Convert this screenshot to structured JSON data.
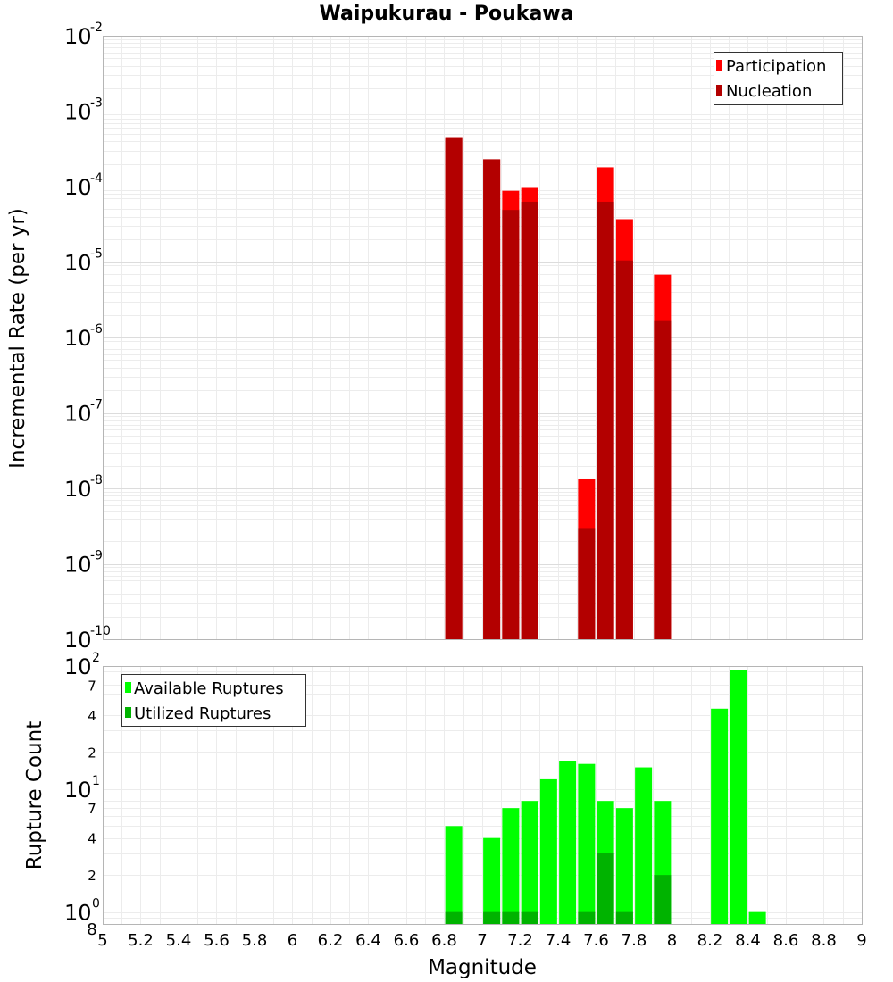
{
  "colors": {
    "participation": "#ff0000",
    "nucleation": "#b30000",
    "available": "#00ff00",
    "utilized": "#00b300"
  },
  "chart_data": [
    {
      "type": "bar",
      "title": "Waipukurau - Poukawa",
      "xlabel": "",
      "ylabel": "Incremental Rate (per yr)",
      "xlim": [
        5,
        9
      ],
      "ylim": [
        1e-10,
        0.01
      ],
      "yscale": "log",
      "grid": true,
      "legend_placement": "top-right",
      "y_tick_labels": [
        {
          "base": "10",
          "exp": "-2"
        },
        {
          "base": "10",
          "exp": "-3"
        },
        {
          "base": "10",
          "exp": "-4"
        },
        {
          "base": "10",
          "exp": "-5"
        },
        {
          "base": "10",
          "exp": "-6"
        },
        {
          "base": "10",
          "exp": "-7"
        },
        {
          "base": "10",
          "exp": "-8"
        },
        {
          "base": "10",
          "exp": "-9"
        },
        {
          "base": "10",
          "exp": "-10"
        }
      ],
      "x": [
        6.85,
        7.05,
        7.15,
        7.25,
        7.55,
        7.65,
        7.75,
        7.95
      ],
      "series": [
        {
          "name": "Participation",
          "values": [
            0.00044,
            0.00023,
            8.8e-05,
            9.6e-05,
            1.35e-08,
            0.00018,
            3.7e-05,
            6.8e-06
          ]
        },
        {
          "name": "Nucleation",
          "values": [
            0.00044,
            0.00023,
            4.9e-05,
            6.3e-05,
            2.9e-09,
            6.3e-05,
            1.05e-05,
            1.65e-06
          ]
        }
      ]
    },
    {
      "type": "bar",
      "title": "",
      "xlabel": "Magnitude",
      "ylabel": "Rupture Count",
      "xlim": [
        5,
        9
      ],
      "ylim": [
        0.8,
        100
      ],
      "yscale": "log",
      "grid": true,
      "legend_placement": "top-left",
      "x_tick_labels": [
        "5",
        "5.2",
        "5.4",
        "5.6",
        "5.8",
        "6",
        "6.2",
        "6.4",
        "6.6",
        "6.8",
        "7",
        "7.2",
        "7.4",
        "7.6",
        "7.8",
        "8",
        "8.2",
        "8.4",
        "8.6",
        "8.8",
        "9"
      ],
      "y_major_labels": [
        {
          "base": "10",
          "exp": "2"
        },
        {
          "base": "10",
          "exp": "1"
        },
        {
          "base": "10",
          "exp": "0"
        }
      ],
      "y_minor_labels": [
        "7",
        "4",
        "2",
        "7",
        "4",
        "2",
        "8"
      ],
      "x": [
        6.85,
        7.05,
        7.15,
        7.25,
        7.35,
        7.45,
        7.55,
        7.65,
        7.75,
        7.85,
        7.95,
        8.25,
        8.35,
        8.45
      ],
      "series": [
        {
          "name": "Available Ruptures",
          "values": [
            5,
            4,
            7,
            8,
            12,
            17,
            16,
            8,
            7,
            15,
            8,
            45,
            92,
            1
          ]
        },
        {
          "name": "Utilized Ruptures",
          "values": [
            1,
            1,
            1,
            1,
            0,
            0,
            1,
            3,
            1,
            0,
            2,
            0,
            0,
            0
          ]
        }
      ]
    }
  ]
}
